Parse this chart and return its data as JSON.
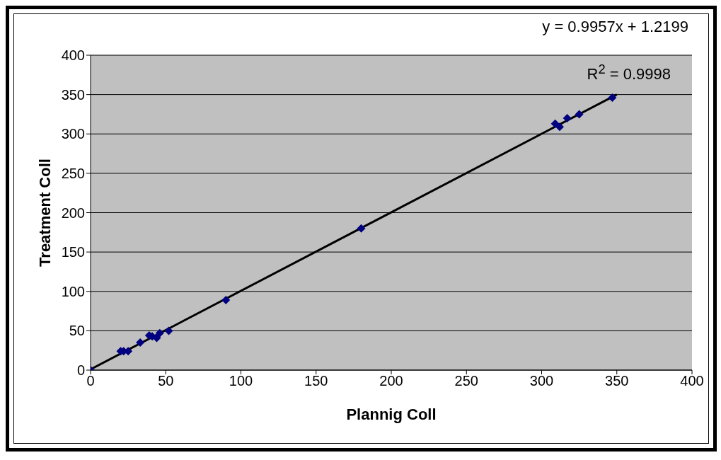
{
  "chart_data": {
    "type": "scatter",
    "xlabel": "Plannig Coll",
    "ylabel": "Treatment Coll",
    "xlim": [
      0,
      400
    ],
    "ylim": [
      0,
      400
    ],
    "xticks": [
      0,
      50,
      100,
      150,
      200,
      250,
      300,
      350,
      400
    ],
    "yticks": [
      0,
      50,
      100,
      150,
      200,
      250,
      300,
      350,
      400
    ],
    "grid": "y",
    "legend": false,
    "marker": "diamond",
    "annotations": [
      "y = 0.9957x + 1.2199",
      "R$^{2}$ = 0.9998"
    ],
    "series": [
      {
        "color": "#000080",
        "x": [
          0,
          20,
          22,
          25,
          33,
          39,
          41,
          44,
          46,
          52,
          90,
          180,
          309,
          312,
          317,
          325,
          347
        ],
        "values": [
          0,
          24,
          24,
          24,
          35,
          44,
          43,
          41,
          47,
          50,
          89,
          180,
          313,
          309,
          320,
          325,
          346
        ]
      },
      {
        "type": "line",
        "color": "#000000",
        "line_style": "solid",
        "marker": "none",
        "x": [
          0,
          350
        ],
        "values": [
          1,
          350
        ]
      }
    ]
  }
}
